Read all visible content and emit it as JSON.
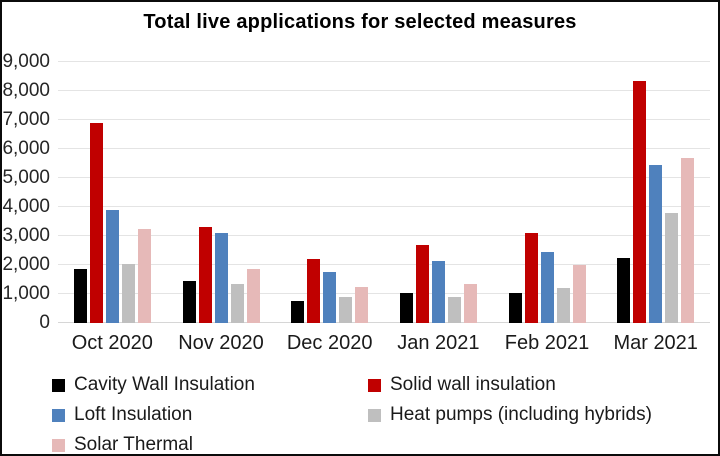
{
  "window": {
    "background": "#FFFFFF",
    "border_color": "#0B0B0B"
  },
  "chart_data": {
    "type": "bar",
    "title": "Total live applications for selected measures",
    "categories": [
      "Oct 2020",
      "Nov 2020",
      "Dec 2020",
      "Jan 2021",
      "Feb 2021",
      "Mar 2021"
    ],
    "series": [
      {
        "name": "Cavity Wall Insulation",
        "color": "#000000",
        "values": [
          1850,
          1450,
          750,
          1050,
          1050,
          2250
        ]
      },
      {
        "name": "Solid wall insulation",
        "color": "#C00000",
        "values": [
          6900,
          3300,
          2200,
          2700,
          3100,
          8350
        ]
      },
      {
        "name": "Loft Insulation",
        "color": "#4F81BD",
        "values": [
          3900,
          3100,
          1750,
          2150,
          2450,
          5450
        ]
      },
      {
        "name": "Heat pumps (including hybrids)",
        "color": "#BFBFBF",
        "values": [
          2050,
          1350,
          900,
          900,
          1200,
          3800
        ]
      },
      {
        "name": "Solar Thermal",
        "color": "#E6B9B8",
        "values": [
          3250,
          1850,
          1250,
          1350,
          2000,
          5700
        ]
      }
    ],
    "xlabel": "",
    "ylabel": "",
    "ylim": [
      0,
      9000
    ],
    "yticks": [
      {
        "value": 0,
        "label": "0"
      },
      {
        "value": 1000,
        "label": "1,000"
      },
      {
        "value": 2000,
        "label": "2,000"
      },
      {
        "value": 3000,
        "label": "3,000"
      },
      {
        "value": 4000,
        "label": "4,000"
      },
      {
        "value": 5000,
        "label": "5,000"
      },
      {
        "value": 6000,
        "label": "6,000"
      },
      {
        "value": 7000,
        "label": "7,000"
      },
      {
        "value": 8000,
        "label": "8,000"
      },
      {
        "value": 9000,
        "label": "9,000"
      }
    ],
    "grid": "horizontal",
    "gridline_color": "#E4E4E4",
    "legend_position": "bottom"
  }
}
